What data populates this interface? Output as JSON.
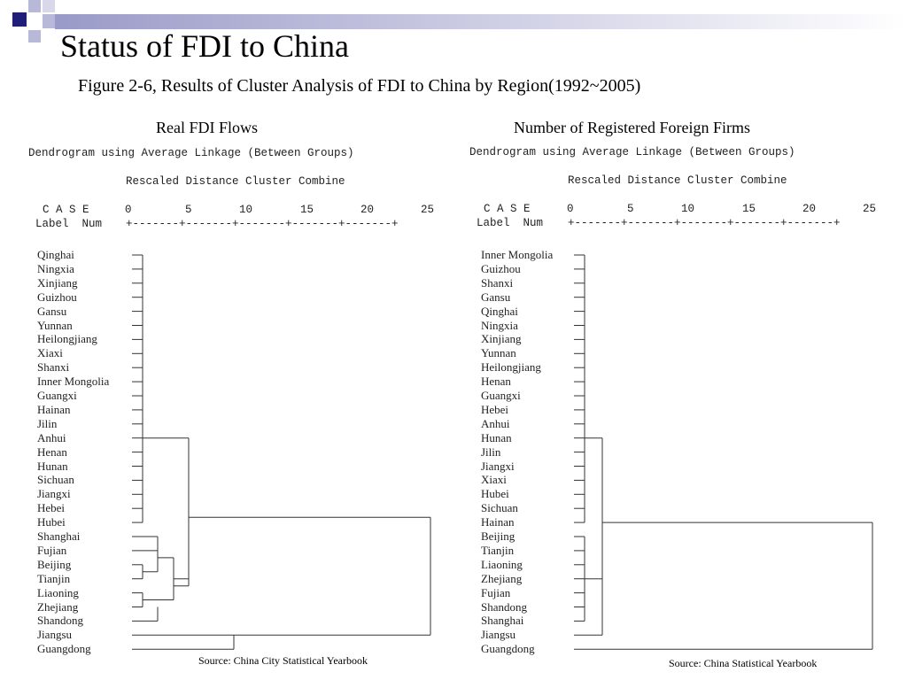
{
  "slide": {
    "title": "Status of FDI to China",
    "subtitle": "Figure 2-6, Results of Cluster Analysis of FDI to China by Region(1992~2005)"
  },
  "colors": {
    "decoration_dark": "#1f1f7a",
    "decoration_light": "#b8b8d8",
    "line": "#333333"
  },
  "panels": [
    {
      "heading": "Real FDI Flows",
      "dendrogram_line": "Dendrogram using Average Linkage (Between Groups)",
      "rescaled_line": "Rescaled Distance Cluster Combine",
      "case_header": "C A S E",
      "label_header": "Label  Num",
      "ticks": [
        "0",
        "5",
        "10",
        "15",
        "20",
        "25"
      ],
      "ruler": "+-------+-------+-------+-------+-------+",
      "labels": [
        "Qinghai",
        "Ningxia",
        "Xinjiang",
        "Guizhou",
        "Gansu",
        "Yunnan",
        "Heilongjiang",
        "Xiaxi",
        "Shanxi",
        "Inner Mongolia",
        "Guangxi",
        "Hainan",
        "Jilin",
        "Anhui",
        "Henan",
        "Hunan",
        "Sichuan",
        "Jiangxi",
        "Hebei",
        "Hubei",
        "Shanghai",
        "Fujian",
        "Beijing",
        "Tianjin",
        "Liaoning",
        "Zhejiang",
        "Shandong",
        "Jiangsu",
        "Guangdong"
      ],
      "source": "Source: China City Statistical Yearbook"
    },
    {
      "heading": "Number of Registered Foreign Firms",
      "dendrogram_line": "Dendrogram using Average Linkage (Between Groups)",
      "rescaled_line": "Rescaled Distance Cluster Combine",
      "case_header": "C A S E",
      "label_header": "Label  Num",
      "ticks": [
        "0",
        "5",
        "10",
        "15",
        "20",
        "25"
      ],
      "ruler": "+-------+-------+-------+-------+-------+",
      "labels": [
        "Inner Mongolia",
        "Guizhou",
        "Shanxi",
        "Gansu",
        "Qinghai",
        "Ningxia",
        "Xinjiang",
        "Yunnan",
        "Heilongjiang",
        "Henan",
        "Guangxi",
        "Hebei",
        "Anhui",
        "Hunan",
        "Jilin",
        "Jiangxi",
        "Xiaxi",
        "Hubei",
        "Sichuan",
        "Hainan",
        "Beijing",
        "Tianjin",
        "Liaoning",
        "Zhejiang",
        "Fujian",
        "Shandong",
        "Shanghai",
        "Jiangsu",
        "Guangdong"
      ],
      "source": "Source: China  Statistical Yearbook"
    }
  ]
}
